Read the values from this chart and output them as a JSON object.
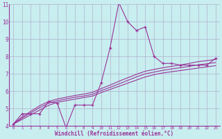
{
  "xlabel": "Windchill (Refroidissement éolien,°C)",
  "background_color": "#c8eef0",
  "grid_color": "#b0b0cc",
  "line_color": "#993399",
  "x_data": [
    0,
    1,
    2,
    3,
    4,
    5,
    6,
    7,
    8,
    9,
    10,
    11,
    12,
    13,
    14,
    15,
    16,
    17,
    18,
    19,
    20,
    21,
    22,
    23
  ],
  "y_main": [
    4.1,
    4.7,
    4.7,
    4.7,
    5.4,
    5.3,
    3.9,
    5.2,
    5.2,
    5.2,
    6.5,
    8.5,
    11.1,
    10.0,
    9.5,
    9.7,
    8.0,
    7.6,
    7.6,
    7.5,
    7.5,
    7.5,
    7.5,
    7.9
  ],
  "y_line1": [
    4.1,
    4.37,
    4.64,
    4.91,
    5.18,
    5.36,
    5.45,
    5.54,
    5.63,
    5.72,
    5.92,
    6.1,
    6.28,
    6.46,
    6.64,
    6.82,
    6.95,
    7.05,
    7.12,
    7.19,
    7.26,
    7.33,
    7.4,
    7.47
  ],
  "y_line2": [
    4.1,
    4.45,
    4.75,
    5.05,
    5.3,
    5.45,
    5.55,
    5.65,
    5.72,
    5.82,
    6.03,
    6.22,
    6.42,
    6.62,
    6.82,
    7.0,
    7.1,
    7.2,
    7.28,
    7.35,
    7.43,
    7.52,
    7.58,
    7.65
  ],
  "y_line3": [
    4.1,
    4.52,
    4.84,
    5.16,
    5.4,
    5.55,
    5.65,
    5.75,
    5.83,
    5.93,
    6.15,
    6.35,
    6.57,
    6.77,
    6.97,
    7.15,
    7.25,
    7.35,
    7.43,
    7.51,
    7.6,
    7.7,
    7.76,
    7.83
  ],
  "ylim": [
    4,
    11
  ],
  "xlim": [
    0,
    23
  ],
  "yticks": [
    4,
    5,
    6,
    7,
    8,
    9,
    10,
    11
  ],
  "xticks": [
    0,
    1,
    2,
    3,
    4,
    5,
    6,
    7,
    8,
    9,
    10,
    11,
    12,
    13,
    14,
    15,
    16,
    17,
    18,
    19,
    20,
    21,
    22,
    23
  ]
}
